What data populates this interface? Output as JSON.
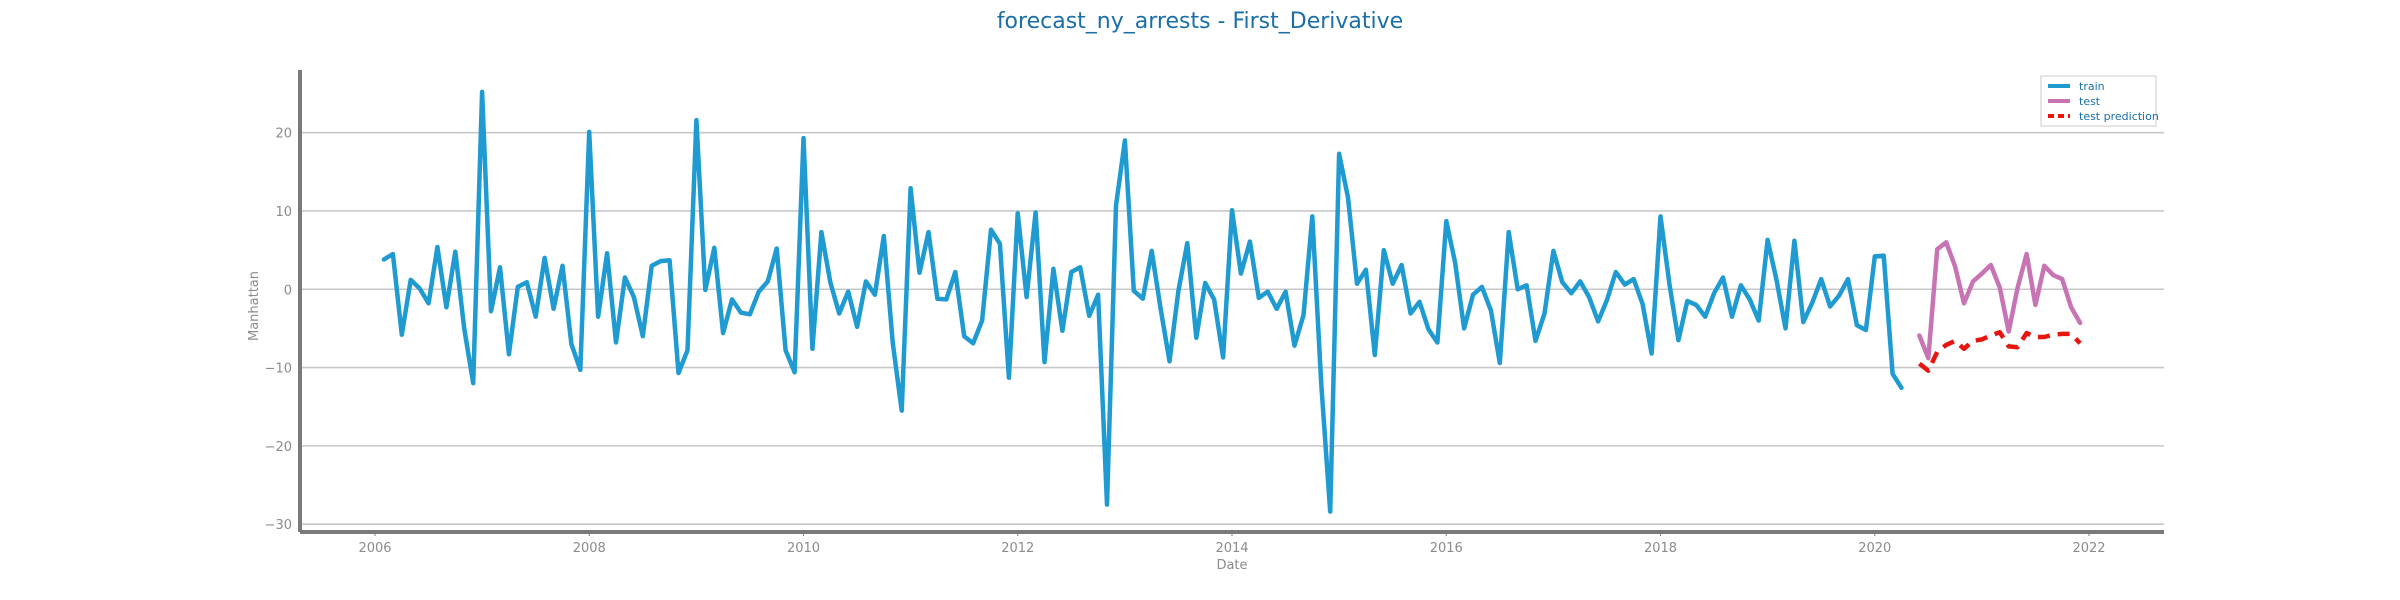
{
  "chart_data": {
    "type": "line",
    "title": "forecast_ny_arrests - First_Derivative",
    "xlabel": "Date",
    "ylabel": "Manhattan",
    "xlim": [
      2005.3,
      2022.7
    ],
    "ylim": [
      -31,
      28
    ],
    "x_ticks": [
      2006,
      2008,
      2010,
      2012,
      2014,
      2016,
      2018,
      2020,
      2022
    ],
    "x_tick_labels": [
      "2006",
      "2008",
      "2010",
      "2012",
      "2014",
      "2016",
      "2018",
      "2020",
      "2022"
    ],
    "y_ticks": [
      -30,
      -20,
      -10,
      0,
      10,
      20
    ],
    "y_tick_labels": [
      "−30",
      "−20",
      "−10",
      "0",
      "10",
      "20"
    ],
    "grid": "horizontal",
    "legend_position": "top-right",
    "colors": {
      "train": "#1f9bd1",
      "test": "#c874b4",
      "test_prediction": "#e8140e",
      "title": "#1a6fa8",
      "axis": "#7a7a7a"
    },
    "series": [
      {
        "name": "train",
        "style": "solid",
        "x": [
          2006.083,
          2006.167,
          2006.25,
          2006.333,
          2006.417,
          2006.5,
          2006.583,
          2006.667,
          2006.75,
          2006.833,
          2006.917,
          2007.0,
          2007.083,
          2007.167,
          2007.25,
          2007.333,
          2007.417,
          2007.5,
          2007.583,
          2007.667,
          2007.75,
          2007.833,
          2007.917,
          2008.0,
          2008.083,
          2008.167,
          2008.25,
          2008.333,
          2008.417,
          2008.5,
          2008.583,
          2008.667,
          2008.75,
          2008.833,
          2008.917,
          2009.0,
          2009.083,
          2009.167,
          2009.25,
          2009.333,
          2009.417,
          2009.5,
          2009.583,
          2009.667,
          2009.75,
          2009.833,
          2009.917,
          2010.0,
          2010.083,
          2010.167,
          2010.25,
          2010.333,
          2010.417,
          2010.5,
          2010.583,
          2010.667,
          2010.75,
          2010.833,
          2010.917,
          2011.0,
          2011.083,
          2011.167,
          2011.25,
          2011.333,
          2011.417,
          2011.5,
          2011.583,
          2011.667,
          2011.75,
          2011.833,
          2011.917,
          2012.0,
          2012.083,
          2012.167,
          2012.25,
          2012.333,
          2012.417,
          2012.5,
          2012.583,
          2012.667,
          2012.75,
          2012.833,
          2012.917,
          2013.0,
          2013.083,
          2013.167,
          2013.25,
          2013.333,
          2013.417,
          2013.5,
          2013.583,
          2013.667,
          2013.75,
          2013.833,
          2013.917,
          2014.0,
          2014.083,
          2014.167,
          2014.25,
          2014.333,
          2014.417,
          2014.5,
          2014.583,
          2014.667,
          2014.75,
          2014.833,
          2014.917,
          2015.0,
          2015.083,
          2015.167,
          2015.25,
          2015.333,
          2015.417,
          2015.5,
          2015.583,
          2015.667,
          2015.75,
          2015.833,
          2015.917,
          2016.0,
          2016.083,
          2016.167,
          2016.25,
          2016.333,
          2016.417,
          2016.5,
          2016.583,
          2016.667,
          2016.75,
          2016.833,
          2016.917,
          2017.0,
          2017.083,
          2017.167,
          2017.25,
          2017.333,
          2017.417,
          2017.5,
          2017.583,
          2017.667,
          2017.75,
          2017.833,
          2017.917,
          2018.0,
          2018.083,
          2018.167,
          2018.25,
          2018.333,
          2018.417,
          2018.5,
          2018.583,
          2018.667,
          2018.75,
          2018.833,
          2018.917,
          2019.0,
          2019.083,
          2019.167,
          2019.25,
          2019.333,
          2019.417,
          2019.5,
          2019.583,
          2019.667,
          2019.75,
          2019.833,
          2019.917,
          2020.0,
          2020.083,
          2020.167,
          2020.25
        ],
        "y": [
          3.8,
          4.5,
          -5.8,
          1.2,
          0.1,
          -1.8,
          5.4,
          -2.3,
          4.8,
          -5.0,
          -12.0,
          25.2,
          -2.8,
          2.8,
          -8.3,
          0.3,
          0.9,
          -3.5,
          4.0,
          -2.5,
          3.0,
          -7.0,
          -10.3,
          20.1,
          -3.5,
          4.6,
          -6.8,
          1.5,
          -1.0,
          -6.0,
          3.0,
          3.6,
          3.7,
          -10.7,
          -7.8,
          21.6,
          -0.1,
          5.3,
          -5.6,
          -1.3,
          -3.0,
          -3.2,
          -0.3,
          1.0,
          5.2,
          -7.8,
          -10.6,
          19.3,
          -7.6,
          7.3,
          0.9,
          -3.1,
          -0.3,
          -4.8,
          1.0,
          -0.7,
          6.8,
          -6.8,
          -15.5,
          12.9,
          2.1,
          7.3,
          -1.2,
          -1.3,
          2.2,
          -6.0,
          -6.9,
          -4.0,
          7.6,
          5.8,
          -11.3,
          9.7,
          -1.0,
          9.8,
          -9.3,
          2.6,
          -5.3,
          2.2,
          2.8,
          -3.4,
          -0.7,
          -27.5,
          10.7,
          19.0,
          -0.2,
          -1.2,
          4.9,
          -2.4,
          -9.2,
          -0.2,
          5.9,
          -6.2,
          0.8,
          -1.3,
          -8.7,
          10.1,
          2.0,
          6.1,
          -1.1,
          -0.3,
          -2.5,
          -0.3,
          -7.2,
          -3.3,
          9.3,
          -12.0,
          -28.4,
          17.3,
          11.7,
          0.7,
          2.5,
          -8.4,
          5.0,
          0.7,
          3.1,
          -3.1,
          -1.6,
          -5.1,
          -6.8,
          8.7,
          3.4,
          -5.0,
          -0.7,
          0.3,
          -2.7,
          -9.4,
          7.3,
          0.0,
          0.5,
          -6.6,
          -3.1,
          4.9,
          0.9,
          -0.5,
          1.0,
          -1.0,
          -4.1,
          -1.4,
          2.2,
          0.6,
          1.3,
          -1.9,
          -8.2,
          9.3,
          0.7,
          -6.5,
          -1.5,
          -2.0,
          -3.5,
          -0.5,
          1.5,
          -3.5,
          0.5,
          -1.3,
          -4.0,
          6.3,
          1.2,
          -5.0,
          6.2,
          -4.2,
          -1.7,
          1.3,
          -2.2,
          -0.8,
          1.3,
          -4.6,
          -5.2,
          4.2,
          4.3,
          -10.8,
          -12.6
        ]
      },
      {
        "name": "test",
        "style": "solid",
        "x": [
          2020.417,
          2020.5,
          2020.583,
          2020.667,
          2020.75,
          2020.833,
          2020.917,
          2021.0,
          2021.083,
          2021.167,
          2021.25,
          2021.333,
          2021.417,
          2021.5,
          2021.583,
          2021.667,
          2021.75,
          2021.833,
          2021.917
        ],
        "y": [
          -5.9,
          -8.8,
          5.1,
          6.0,
          2.9,
          -1.8,
          1.0,
          2.0,
          3.1,
          0.2,
          -5.4,
          0.2,
          4.5,
          -2.0,
          3.0,
          1.8,
          1.3,
          -2.3,
          -4.3
        ]
      },
      {
        "name": "test prediction",
        "style": "dashed",
        "x": [
          2020.417,
          2020.5,
          2020.583,
          2020.667,
          2020.75,
          2020.833,
          2020.917,
          2021.0,
          2021.083,
          2021.167,
          2021.25,
          2021.333,
          2021.417,
          2021.5,
          2021.583,
          2021.667,
          2021.75,
          2021.833,
          2021.917
        ],
        "y": [
          -9.5,
          -10.4,
          -8.0,
          -7.1,
          -6.6,
          -7.6,
          -6.6,
          -6.4,
          -5.9,
          -5.5,
          -7.3,
          -7.4,
          -5.6,
          -6.1,
          -6.1,
          -5.8,
          -5.7,
          -5.7,
          -6.9
        ]
      }
    ]
  }
}
